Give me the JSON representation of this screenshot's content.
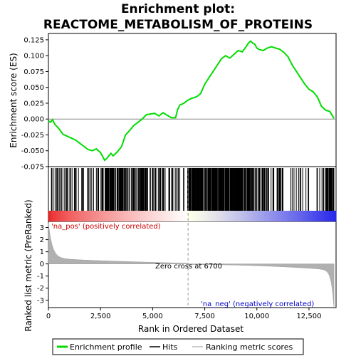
{
  "title_line1": "Enrichment plot:",
  "title_line2": "REACTOME_METABOLISM_OF_PROTEINS",
  "chart_data": {
    "type": "line",
    "x_range": [
      0,
      13800
    ],
    "x_ticks": [
      0,
      2500,
      5000,
      7500,
      10000,
      12500
    ],
    "x_tick_labels": [
      "0",
      "2,500",
      "5,000",
      "7,500",
      "10,000",
      "12,500"
    ],
    "xlabel": "Rank in Ordered Dataset",
    "es_panel": {
      "ylabel": "Enrichment score (ES)",
      "ylim": [
        -0.075,
        0.135
      ],
      "y_ticks": [
        -0.075,
        -0.05,
        -0.025,
        0.0,
        0.025,
        0.05,
        0.075,
        0.1,
        0.125
      ],
      "y_tick_labels": [
        "-0.075",
        "-0.050",
        "-0.025",
        "0.000",
        "0.025",
        "0.050",
        "0.075",
        "0.100",
        "0.125"
      ],
      "series": [
        {
          "name": "Enrichment profile",
          "color": "#00dd00",
          "x": [
            0,
            100,
            200,
            300,
            500,
            700,
            900,
            1100,
            1300,
            1500,
            1700,
            1900,
            2100,
            2300,
            2500,
            2700,
            2800,
            3000,
            3100,
            3300,
            3500,
            3700,
            3900,
            4100,
            4300,
            4500,
            4700,
            4900,
            5100,
            5300,
            5500,
            5700,
            5900,
            6100,
            6200,
            6300,
            6500,
            6700,
            6900,
            7100,
            7300,
            7500,
            7700,
            7900,
            8100,
            8300,
            8500,
            8700,
            8900,
            9100,
            9300,
            9500,
            9600,
            9700,
            9800,
            9900,
            10000,
            10100,
            10300,
            10500,
            10700,
            10900,
            11100,
            11300,
            11500,
            11700,
            11900,
            12100,
            12300,
            12500,
            12700,
            12900,
            13100,
            13300,
            13500,
            13700
          ],
          "y": [
            -0.003,
            -0.005,
            -0.001,
            -0.008,
            -0.015,
            -0.024,
            -0.027,
            -0.03,
            -0.033,
            -0.038,
            -0.043,
            -0.048,
            -0.05,
            -0.047,
            -0.053,
            -0.065,
            -0.062,
            -0.054,
            -0.058,
            -0.052,
            -0.044,
            -0.025,
            -0.018,
            -0.01,
            -0.005,
            0.0,
            0.007,
            0.008,
            0.009,
            0.005,
            0.01,
            0.006,
            0.002,
            0.002,
            0.015,
            0.022,
            0.025,
            0.03,
            0.033,
            0.035,
            0.04,
            0.055,
            0.065,
            0.075,
            0.085,
            0.095,
            0.1,
            0.096,
            0.102,
            0.108,
            0.106,
            0.115,
            0.12,
            0.123,
            0.12,
            0.118,
            0.112,
            0.11,
            0.108,
            0.112,
            0.114,
            0.112,
            0.11,
            0.105,
            0.098,
            0.085,
            0.075,
            0.065,
            0.055,
            0.047,
            0.043,
            0.035,
            0.02,
            0.014,
            0.012,
            0.001
          ]
        }
      ]
    },
    "hits_legend_label": "Hits",
    "rank_panel": {
      "ylabel": "Ranked list metric (PreRanked)",
      "ylim": [
        -3.6,
        3.5
      ],
      "y_ticks": [
        -3,
        -2,
        -1,
        0,
        1,
        2,
        3
      ],
      "y_tick_labels": [
        "-3",
        "-2",
        "-1",
        "0",
        "1",
        "2",
        "3"
      ],
      "series_name": "Ranking metric scores",
      "zero_cross": 6700,
      "zero_cross_label": "Zero cross at 6700",
      "pos_label": "'na_pos' (positively correlated)",
      "neg_label": "'na_neg' (negatively correlated)"
    },
    "legend_entries": [
      "Enrichment profile",
      "Hits",
      "Ranking metric scores"
    ]
  }
}
